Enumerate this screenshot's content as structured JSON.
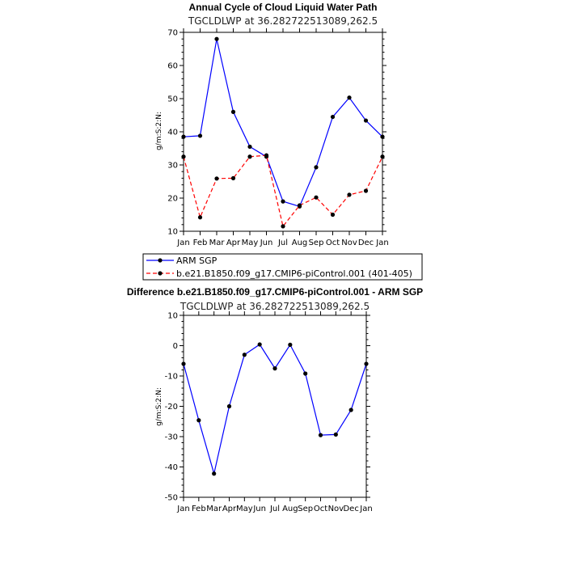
{
  "chart_data": [
    {
      "type": "line",
      "title": "Annual Cycle of Cloud Liquid Water Path",
      "subtitle": "TGCLDLWP  at  36.282722513089,262.5",
      "ylabel": "g/m:S:2:N:",
      "xlabel": "",
      "categories": [
        "Jan",
        "Feb",
        "Mar",
        "Apr",
        "May",
        "Jun",
        "Jul",
        "Aug",
        "Sep",
        "Oct",
        "Nov",
        "Dec",
        "Jan"
      ],
      "ylim": [
        10,
        70
      ],
      "yticks": [
        10,
        20,
        30,
        40,
        50,
        60,
        70
      ],
      "legend_position": "bottom",
      "series": [
        {
          "name": "ARM SGP",
          "color": "#0000ff",
          "dash": "solid",
          "values": [
            38.5,
            38.8,
            68.0,
            46.0,
            35.5,
            32.5,
            19.0,
            17.5,
            29.3,
            44.5,
            50.3,
            43.4,
            38.5
          ]
        },
        {
          "name": "b.e21.B1850.f09_g17.CMIP6-piControl.001 (401-405)",
          "color": "#ff0000",
          "dash": "dashed",
          "values": [
            32.5,
            14.2,
            25.9,
            26.0,
            32.5,
            32.9,
            11.5,
            17.8,
            20.2,
            15.0,
            21.0,
            22.2,
            32.5
          ]
        }
      ]
    },
    {
      "type": "line",
      "title": "Difference b.e21.B1850.f09_g17.CMIP6-piControl.001 - ARM SGP",
      "subtitle": "TGCLDLWP  at  36.282722513089,262.5",
      "ylabel": "g/m:S:2:N:",
      "xlabel": "",
      "categories": [
        "Jan",
        "Feb",
        "Mar",
        "Apr",
        "May",
        "Jun",
        "Jul",
        "Aug",
        "Sep",
        "Oct",
        "Nov",
        "Dec",
        "Jan"
      ],
      "ylim": [
        -50,
        10
      ],
      "yticks": [
        -50,
        -40,
        -30,
        -20,
        -10,
        0,
        10
      ],
      "series": [
        {
          "color": "#0000ff",
          "dash": "solid",
          "values": [
            -6.0,
            -24.6,
            -42.2,
            -20.0,
            -3.0,
            0.4,
            -7.5,
            0.3,
            -9.2,
            -29.5,
            -29.3,
            -21.2,
            -6.0
          ]
        }
      ]
    }
  ]
}
